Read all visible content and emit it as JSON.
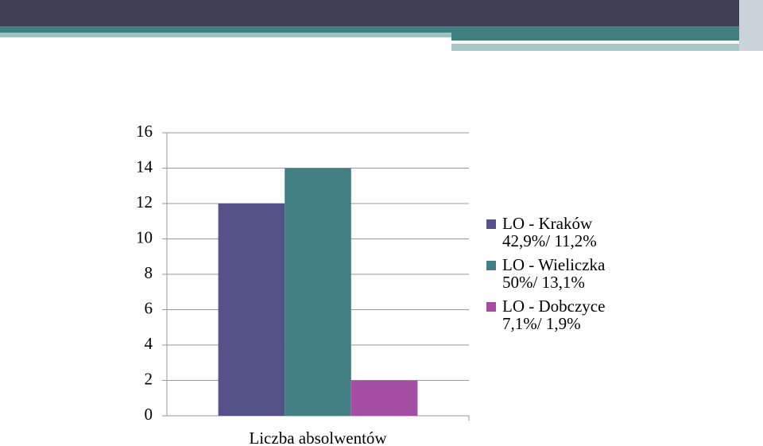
{
  "chart_data": {
    "type": "bar",
    "categories": [
      "Liczba absolwentów"
    ],
    "series": [
      {
        "name": "LO - Kraków 42,9%/ 11,2%",
        "color": "#55528a",
        "values": [
          12
        ]
      },
      {
        "name": "LO - Wieliczka 50%/ 13,1%",
        "color": "#428083",
        "values": [
          14
        ]
      },
      {
        "name": "LO - Dobczyce 7,1%/ 1,9%",
        "color": "#a34ea3",
        "values": [
          2
        ]
      }
    ],
    "ylim": [
      0,
      16
    ],
    "yticks": [
      0,
      2,
      4,
      6,
      8,
      10,
      12,
      14,
      16
    ],
    "grid": true,
    "legend": "right"
  }
}
